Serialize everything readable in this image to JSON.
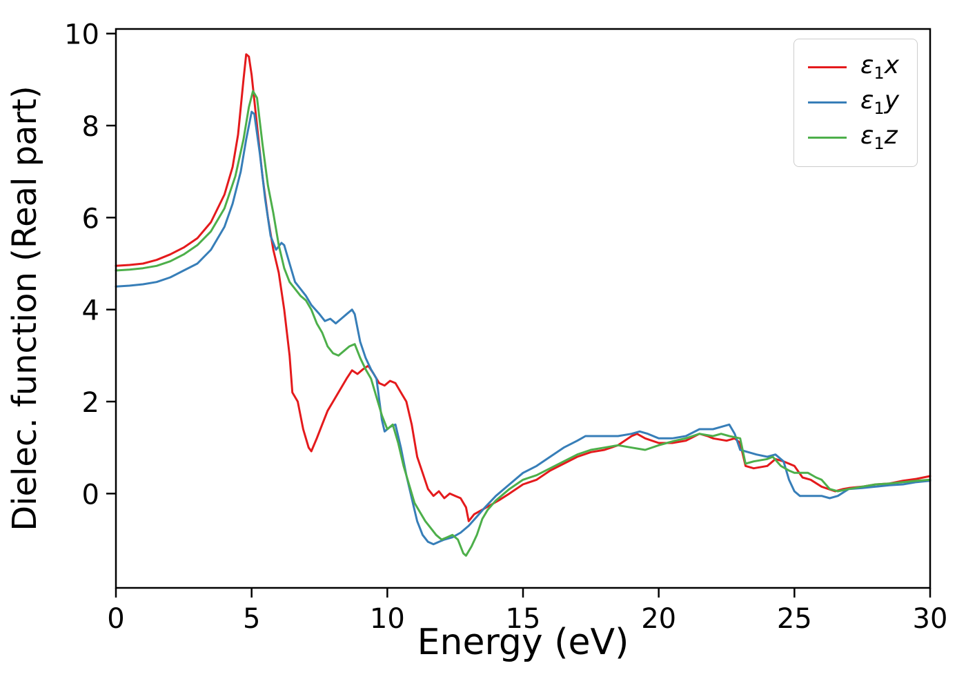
{
  "figure": {
    "background": "#ffffff"
  },
  "chart_data": {
    "type": "line",
    "title": "",
    "xlabel": "Energy (eV)",
    "ylabel": "Dielec. function (Real part)",
    "xlim": [
      0,
      30
    ],
    "ylim": [
      -2.05,
      10.1
    ],
    "xticks": [
      0,
      5,
      10,
      15,
      20,
      25,
      30
    ],
    "yticks": [
      0,
      2,
      4,
      6,
      8,
      10
    ],
    "grid": false,
    "legend_position": "upper right",
    "series": [
      {
        "name": "eps1x",
        "label_symbol": "ε",
        "label_sub": "1",
        "label_var": "x",
        "color": "#e41a1c",
        "points": [
          [
            0,
            4.95
          ],
          [
            0.5,
            4.97
          ],
          [
            1,
            5.0
          ],
          [
            1.5,
            5.08
          ],
          [
            2,
            5.2
          ],
          [
            2.5,
            5.35
          ],
          [
            3,
            5.55
          ],
          [
            3.5,
            5.9
          ],
          [
            4,
            6.5
          ],
          [
            4.3,
            7.1
          ],
          [
            4.5,
            7.8
          ],
          [
            4.7,
            9.0
          ],
          [
            4.8,
            9.55
          ],
          [
            4.9,
            9.5
          ],
          [
            5.0,
            9.1
          ],
          [
            5.2,
            8.0
          ],
          [
            5.4,
            6.9
          ],
          [
            5.6,
            6.0
          ],
          [
            5.8,
            5.3
          ],
          [
            6.0,
            4.8
          ],
          [
            6.2,
            4.0
          ],
          [
            6.4,
            3.0
          ],
          [
            6.5,
            2.2
          ],
          [
            6.7,
            2.0
          ],
          [
            6.9,
            1.4
          ],
          [
            7.1,
            1.0
          ],
          [
            7.2,
            0.92
          ],
          [
            7.4,
            1.2
          ],
          [
            7.6,
            1.5
          ],
          [
            7.8,
            1.8
          ],
          [
            8.0,
            2.0
          ],
          [
            8.2,
            2.2
          ],
          [
            8.5,
            2.5
          ],
          [
            8.7,
            2.68
          ],
          [
            8.9,
            2.6
          ],
          [
            9.1,
            2.7
          ],
          [
            9.3,
            2.78
          ],
          [
            9.5,
            2.6
          ],
          [
            9.7,
            2.4
          ],
          [
            9.9,
            2.35
          ],
          [
            10.1,
            2.45
          ],
          [
            10.3,
            2.4
          ],
          [
            10.5,
            2.2
          ],
          [
            10.7,
            2.0
          ],
          [
            10.9,
            1.5
          ],
          [
            11.1,
            0.8
          ],
          [
            11.3,
            0.45
          ],
          [
            11.5,
            0.1
          ],
          [
            11.7,
            -0.05
          ],
          [
            11.9,
            0.05
          ],
          [
            12.1,
            -0.1
          ],
          [
            12.3,
            0.0
          ],
          [
            12.5,
            -0.05
          ],
          [
            12.7,
            -0.1
          ],
          [
            12.9,
            -0.3
          ],
          [
            13.0,
            -0.6
          ],
          [
            13.2,
            -0.45
          ],
          [
            13.5,
            -0.35
          ],
          [
            13.8,
            -0.25
          ],
          [
            14.1,
            -0.15
          ],
          [
            14.5,
            0.0
          ],
          [
            15,
            0.2
          ],
          [
            15.5,
            0.3
          ],
          [
            16,
            0.5
          ],
          [
            16.5,
            0.65
          ],
          [
            17,
            0.8
          ],
          [
            17.5,
            0.9
          ],
          [
            18,
            0.95
          ],
          [
            18.5,
            1.05
          ],
          [
            19,
            1.25
          ],
          [
            19.2,
            1.3
          ],
          [
            19.5,
            1.2
          ],
          [
            20,
            1.1
          ],
          [
            20.5,
            1.1
          ],
          [
            21,
            1.15
          ],
          [
            21.5,
            1.3
          ],
          [
            21.8,
            1.25
          ],
          [
            22,
            1.2
          ],
          [
            22.5,
            1.15
          ],
          [
            22.8,
            1.2
          ],
          [
            23,
            1.1
          ],
          [
            23.2,
            0.6
          ],
          [
            23.5,
            0.55
          ],
          [
            24,
            0.6
          ],
          [
            24.3,
            0.75
          ],
          [
            24.6,
            0.7
          ],
          [
            25,
            0.6
          ],
          [
            25.3,
            0.35
          ],
          [
            25.6,
            0.3
          ],
          [
            26,
            0.15
          ],
          [
            26.5,
            0.05
          ],
          [
            26.8,
            0.1
          ],
          [
            27,
            0.12
          ],
          [
            27.5,
            0.15
          ],
          [
            28,
            0.2
          ],
          [
            28.5,
            0.22
          ],
          [
            29,
            0.28
          ],
          [
            29.5,
            0.32
          ],
          [
            30,
            0.38
          ]
        ]
      },
      {
        "name": "eps1y",
        "label_symbol": "ε",
        "label_sub": "1",
        "label_var": "y",
        "color": "#377eb8",
        "points": [
          [
            0,
            4.5
          ],
          [
            0.5,
            4.52
          ],
          [
            1,
            4.55
          ],
          [
            1.5,
            4.6
          ],
          [
            2,
            4.7
          ],
          [
            2.5,
            4.85
          ],
          [
            3,
            5.0
          ],
          [
            3.5,
            5.3
          ],
          [
            4,
            5.8
          ],
          [
            4.3,
            6.3
          ],
          [
            4.6,
            7.0
          ],
          [
            4.8,
            7.7
          ],
          [
            5.0,
            8.3
          ],
          [
            5.1,
            8.25
          ],
          [
            5.3,
            7.4
          ],
          [
            5.5,
            6.4
          ],
          [
            5.7,
            5.6
          ],
          [
            5.9,
            5.3
          ],
          [
            6.1,
            5.45
          ],
          [
            6.2,
            5.4
          ],
          [
            6.4,
            5.0
          ],
          [
            6.6,
            4.6
          ],
          [
            6.8,
            4.45
          ],
          [
            7.0,
            4.3
          ],
          [
            7.2,
            4.1
          ],
          [
            7.5,
            3.9
          ],
          [
            7.7,
            3.75
          ],
          [
            7.9,
            3.8
          ],
          [
            8.1,
            3.7
          ],
          [
            8.3,
            3.8
          ],
          [
            8.5,
            3.9
          ],
          [
            8.7,
            4.0
          ],
          [
            8.8,
            3.9
          ],
          [
            9.0,
            3.3
          ],
          [
            9.2,
            2.95
          ],
          [
            9.4,
            2.7
          ],
          [
            9.6,
            2.5
          ],
          [
            9.8,
            1.6
          ],
          [
            9.9,
            1.35
          ],
          [
            10.1,
            1.45
          ],
          [
            10.3,
            1.5
          ],
          [
            10.5,
            1.0
          ],
          [
            10.7,
            0.4
          ],
          [
            10.9,
            -0.1
          ],
          [
            11.1,
            -0.6
          ],
          [
            11.3,
            -0.9
          ],
          [
            11.5,
            -1.05
          ],
          [
            11.7,
            -1.1
          ],
          [
            11.9,
            -1.05
          ],
          [
            12.1,
            -1.0
          ],
          [
            12.4,
            -0.95
          ],
          [
            12.7,
            -0.85
          ],
          [
            13.0,
            -0.7
          ],
          [
            13.3,
            -0.5
          ],
          [
            13.6,
            -0.3
          ],
          [
            14,
            -0.05
          ],
          [
            14.5,
            0.2
          ],
          [
            15,
            0.45
          ],
          [
            15.5,
            0.6
          ],
          [
            16,
            0.8
          ],
          [
            16.5,
            1.0
          ],
          [
            17,
            1.15
          ],
          [
            17.3,
            1.25
          ],
          [
            17.6,
            1.25
          ],
          [
            18,
            1.25
          ],
          [
            18.5,
            1.25
          ],
          [
            19,
            1.3
          ],
          [
            19.3,
            1.35
          ],
          [
            19.6,
            1.3
          ],
          [
            20,
            1.2
          ],
          [
            20.5,
            1.2
          ],
          [
            21,
            1.25
          ],
          [
            21.5,
            1.4
          ],
          [
            22,
            1.4
          ],
          [
            22.3,
            1.45
          ],
          [
            22.6,
            1.5
          ],
          [
            22.8,
            1.3
          ],
          [
            23,
            0.95
          ],
          [
            23.3,
            0.9
          ],
          [
            23.6,
            0.85
          ],
          [
            24,
            0.8
          ],
          [
            24.3,
            0.85
          ],
          [
            24.6,
            0.7
          ],
          [
            24.8,
            0.3
          ],
          [
            25,
            0.05
          ],
          [
            25.2,
            -0.05
          ],
          [
            25.5,
            -0.05
          ],
          [
            26,
            -0.05
          ],
          [
            26.3,
            -0.1
          ],
          [
            26.6,
            -0.05
          ],
          [
            27,
            0.1
          ],
          [
            27.5,
            0.12
          ],
          [
            28,
            0.15
          ],
          [
            28.5,
            0.18
          ],
          [
            29,
            0.2
          ],
          [
            29.5,
            0.25
          ],
          [
            30,
            0.28
          ]
        ]
      },
      {
        "name": "eps1z",
        "label_symbol": "ε",
        "label_sub": "1",
        "label_var": "z",
        "color": "#4daf4a",
        "points": [
          [
            0,
            4.85
          ],
          [
            0.5,
            4.87
          ],
          [
            1,
            4.9
          ],
          [
            1.5,
            4.95
          ],
          [
            2,
            5.05
          ],
          [
            2.5,
            5.2
          ],
          [
            3,
            5.4
          ],
          [
            3.5,
            5.7
          ],
          [
            4,
            6.2
          ],
          [
            4.4,
            6.9
          ],
          [
            4.7,
            7.7
          ],
          [
            4.9,
            8.4
          ],
          [
            5.05,
            8.75
          ],
          [
            5.2,
            8.6
          ],
          [
            5.4,
            7.6
          ],
          [
            5.6,
            6.7
          ],
          [
            5.8,
            6.1
          ],
          [
            6.0,
            5.4
          ],
          [
            6.2,
            4.9
          ],
          [
            6.4,
            4.6
          ],
          [
            6.6,
            4.45
          ],
          [
            6.8,
            4.3
          ],
          [
            7.0,
            4.2
          ],
          [
            7.2,
            4.0
          ],
          [
            7.4,
            3.7
          ],
          [
            7.6,
            3.5
          ],
          [
            7.8,
            3.2
          ],
          [
            8.0,
            3.05
          ],
          [
            8.2,
            3.0
          ],
          [
            8.4,
            3.1
          ],
          [
            8.6,
            3.2
          ],
          [
            8.8,
            3.25
          ],
          [
            9.0,
            2.95
          ],
          [
            9.2,
            2.7
          ],
          [
            9.4,
            2.5
          ],
          [
            9.6,
            2.1
          ],
          [
            9.8,
            1.7
          ],
          [
            10.0,
            1.4
          ],
          [
            10.2,
            1.5
          ],
          [
            10.4,
            1.1
          ],
          [
            10.6,
            0.6
          ],
          [
            10.8,
            0.2
          ],
          [
            11.0,
            -0.2
          ],
          [
            11.2,
            -0.4
          ],
          [
            11.4,
            -0.6
          ],
          [
            11.6,
            -0.75
          ],
          [
            11.8,
            -0.9
          ],
          [
            12.0,
            -1.0
          ],
          [
            12.2,
            -0.95
          ],
          [
            12.4,
            -0.9
          ],
          [
            12.6,
            -1.0
          ],
          [
            12.8,
            -1.3
          ],
          [
            12.9,
            -1.35
          ],
          [
            13.1,
            -1.15
          ],
          [
            13.3,
            -0.9
          ],
          [
            13.5,
            -0.55
          ],
          [
            13.7,
            -0.35
          ],
          [
            14,
            -0.15
          ],
          [
            14.5,
            0.1
          ],
          [
            15,
            0.3
          ],
          [
            15.5,
            0.4
          ],
          [
            16,
            0.55
          ],
          [
            16.5,
            0.7
          ],
          [
            17,
            0.85
          ],
          [
            17.5,
            0.95
          ],
          [
            18,
            1.0
          ],
          [
            18.5,
            1.05
          ],
          [
            19,
            1.0
          ],
          [
            19.5,
            0.95
          ],
          [
            20,
            1.05
          ],
          [
            20.3,
            1.1
          ],
          [
            20.6,
            1.15
          ],
          [
            21,
            1.2
          ],
          [
            21.5,
            1.3
          ],
          [
            22,
            1.25
          ],
          [
            22.3,
            1.3
          ],
          [
            22.6,
            1.25
          ],
          [
            23,
            1.2
          ],
          [
            23.2,
            0.65
          ],
          [
            23.5,
            0.7
          ],
          [
            24,
            0.75
          ],
          [
            24.2,
            0.8
          ],
          [
            24.5,
            0.6
          ],
          [
            24.8,
            0.5
          ],
          [
            25,
            0.45
          ],
          [
            25.5,
            0.45
          ],
          [
            25.8,
            0.35
          ],
          [
            26,
            0.3
          ],
          [
            26.3,
            0.1
          ],
          [
            26.6,
            0.05
          ],
          [
            27,
            0.1
          ],
          [
            27.5,
            0.15
          ],
          [
            28,
            0.2
          ],
          [
            28.5,
            0.22
          ],
          [
            29,
            0.25
          ],
          [
            29.5,
            0.28
          ],
          [
            30,
            0.3
          ]
        ]
      }
    ]
  }
}
